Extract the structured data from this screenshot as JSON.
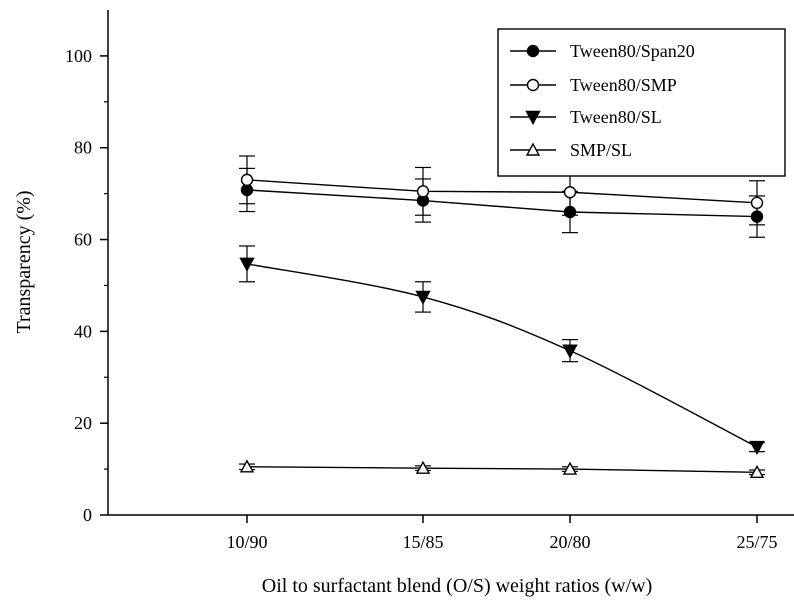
{
  "chart_data": {
    "type": "line",
    "title": "",
    "xlabel": "Oil to surfactant blend (O/S) weight ratios (w/w)",
    "ylabel": "Transparency (%)",
    "categories": [
      "10/90",
      "15/85",
      "20/80",
      "25/75"
    ],
    "ylim": [
      0,
      110
    ],
    "yticks": [
      0,
      20,
      40,
      60,
      80,
      100
    ],
    "grid": false,
    "legend_position": "top-right",
    "series": [
      {
        "name": "Tween80/Span20",
        "marker": "filled-circle",
        "values": [
          70.8,
          68.5,
          66.0,
          65.0
        ],
        "errors": [
          4.7,
          4.7,
          4.5,
          4.5
        ]
      },
      {
        "name": "Tween80/SMP",
        "marker": "open-circle",
        "values": [
          73.0,
          70.5,
          70.3,
          68.0
        ],
        "errors": [
          5.2,
          5.2,
          5.0,
          4.8
        ]
      },
      {
        "name": "Tween80/SL",
        "marker": "filled-triangle-down",
        "values": [
          54.7,
          47.5,
          35.8,
          14.8
        ],
        "errors": [
          3.9,
          3.3,
          2.4,
          1.0
        ]
      },
      {
        "name": "SMP/SL",
        "marker": "open-triangle-up",
        "values": [
          10.5,
          10.2,
          10.0,
          9.3
        ],
        "errors": [
          0.6,
          0.5,
          0.5,
          0.5
        ]
      }
    ]
  }
}
